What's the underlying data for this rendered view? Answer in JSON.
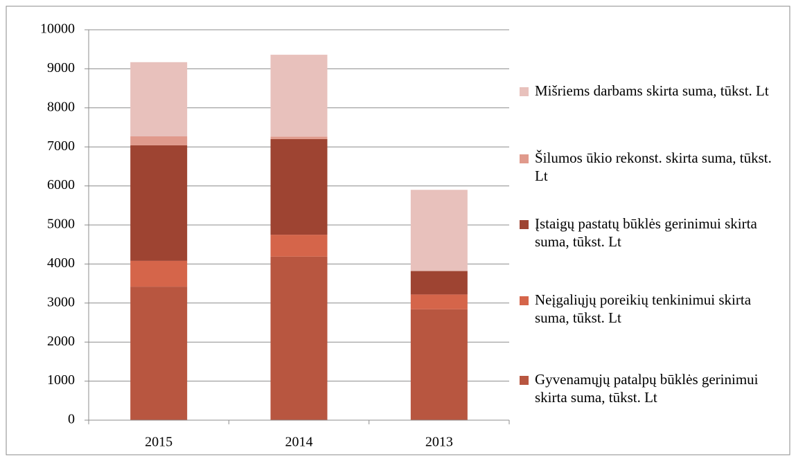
{
  "chart_data": {
    "type": "stacked_bar",
    "categories": [
      "2015",
      "2014",
      "2013"
    ],
    "series": [
      {
        "name": "Gyvenamųjų patalpų būklės gerinimui skirta suma, tūkst. Lt",
        "color": "#b85640",
        "values": [
          3420,
          4190,
          2840
        ]
      },
      {
        "name": "Neįgaliųjų poreikių tenkinimui skirta suma, tūkst. Lt",
        "color": "#d5654a",
        "values": [
          660,
          560,
          380
        ]
      },
      {
        "name": "Įstaigų pastatų būklės gerinimui skirta suma, tūkst. Lt",
        "color": "#9e4432",
        "values": [
          2960,
          2450,
          600
        ]
      },
      {
        "name": "Šilumos ūkio rekonst. skirta suma, tūkst. Lt",
        "color": "#e09a8c",
        "values": [
          230,
          60,
          0
        ]
      },
      {
        "name": "Mišriems darbams skirta suma, tūkst. Lt",
        "color": "#e8c1bc",
        "values": [
          1900,
          2100,
          2080
        ]
      }
    ],
    "ylim": [
      0,
      10000
    ],
    "yticks": [
      0,
      1000,
      2000,
      3000,
      4000,
      5000,
      6000,
      7000,
      8000,
      9000,
      10000
    ],
    "grid": true,
    "legend": "right"
  }
}
